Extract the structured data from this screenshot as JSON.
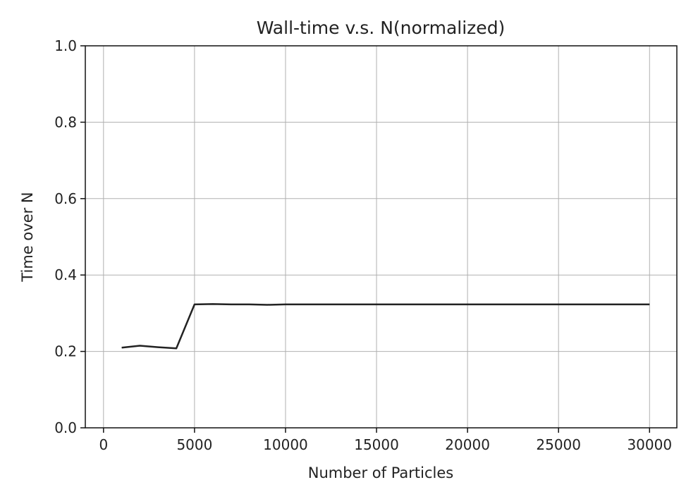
{
  "chart_data": {
    "type": "line",
    "title": "Wall-time v.s. N(normalized)",
    "xlabel": "Number of Particles",
    "ylabel": "Time over N",
    "xlim": [
      -1000,
      31500
    ],
    "ylim": [
      0.0,
      1.0
    ],
    "xticks": [
      0,
      5000,
      10000,
      15000,
      20000,
      25000,
      30000
    ],
    "xtick_labels": [
      "0",
      "5000",
      "10000",
      "15000",
      "20000",
      "25000",
      "30000"
    ],
    "yticks": [
      0.0,
      0.2,
      0.4,
      0.6,
      0.8,
      1.0
    ],
    "ytick_labels": [
      "0.0",
      "0.2",
      "0.4",
      "0.6",
      "0.8",
      "1.0"
    ],
    "grid": true,
    "legend": "none",
    "series": [
      {
        "color": "#222222",
        "x": [
          1000,
          2000,
          3000,
          4000,
          5000,
          6000,
          7000,
          8000,
          9000,
          10000,
          15000,
          20000,
          25000,
          30000
        ],
        "y": [
          0.21,
          0.215,
          0.211,
          0.208,
          0.323,
          0.324,
          0.323,
          0.323,
          0.322,
          0.323,
          0.323,
          0.323,
          0.323,
          0.323
        ]
      }
    ]
  }
}
